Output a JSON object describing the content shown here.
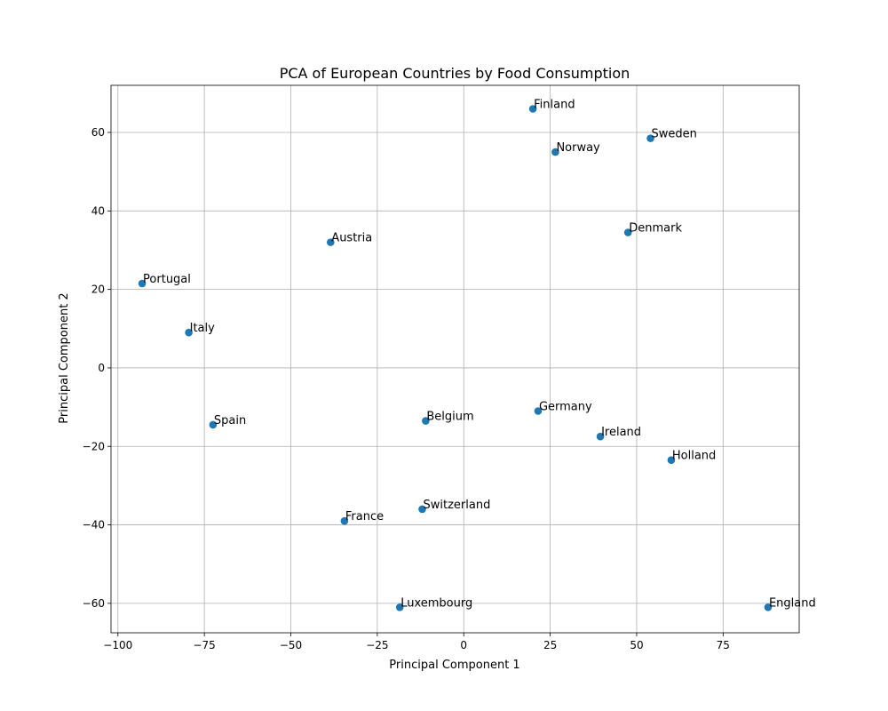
{
  "chart_data": {
    "type": "scatter",
    "title": "PCA of European Countries by Food Consumption",
    "xlabel": "Principal Component 1",
    "ylabel": "Principal Component 2",
    "xlim": [
      -102,
      97
    ],
    "ylim": [
      -67.5,
      72
    ],
    "xticks": [
      -100,
      -75,
      -50,
      -25,
      0,
      25,
      50,
      75
    ],
    "yticks": [
      -60,
      -40,
      -20,
      0,
      20,
      40,
      60
    ],
    "grid": true,
    "marker_color": "#1f77b4",
    "points": [
      {
        "label": "Finland",
        "x": 20.0,
        "y": 66.0
      },
      {
        "label": "Sweden",
        "x": 54.0,
        "y": 58.5
      },
      {
        "label": "Norway",
        "x": 26.5,
        "y": 55.0
      },
      {
        "label": "Denmark",
        "x": 47.5,
        "y": 34.5
      },
      {
        "label": "Austria",
        "x": -38.5,
        "y": 32.0
      },
      {
        "label": "Portugal",
        "x": -93.0,
        "y": 21.5
      },
      {
        "label": "Italy",
        "x": -79.5,
        "y": 9.0
      },
      {
        "label": "Spain",
        "x": -72.5,
        "y": -14.5
      },
      {
        "label": "Belgium",
        "x": -11.0,
        "y": -13.5
      },
      {
        "label": "Germany",
        "x": 21.5,
        "y": -11.0
      },
      {
        "label": "Ireland",
        "x": 39.5,
        "y": -17.5
      },
      {
        "label": "Holland",
        "x": 60.0,
        "y": -23.5
      },
      {
        "label": "Switzerland",
        "x": -12.0,
        "y": -36.0
      },
      {
        "label": "France",
        "x": -34.5,
        "y": -39.0
      },
      {
        "label": "Luxembourg",
        "x": -18.5,
        "y": -61.0
      },
      {
        "label": "England",
        "x": 88.0,
        "y": -61.0
      }
    ]
  }
}
